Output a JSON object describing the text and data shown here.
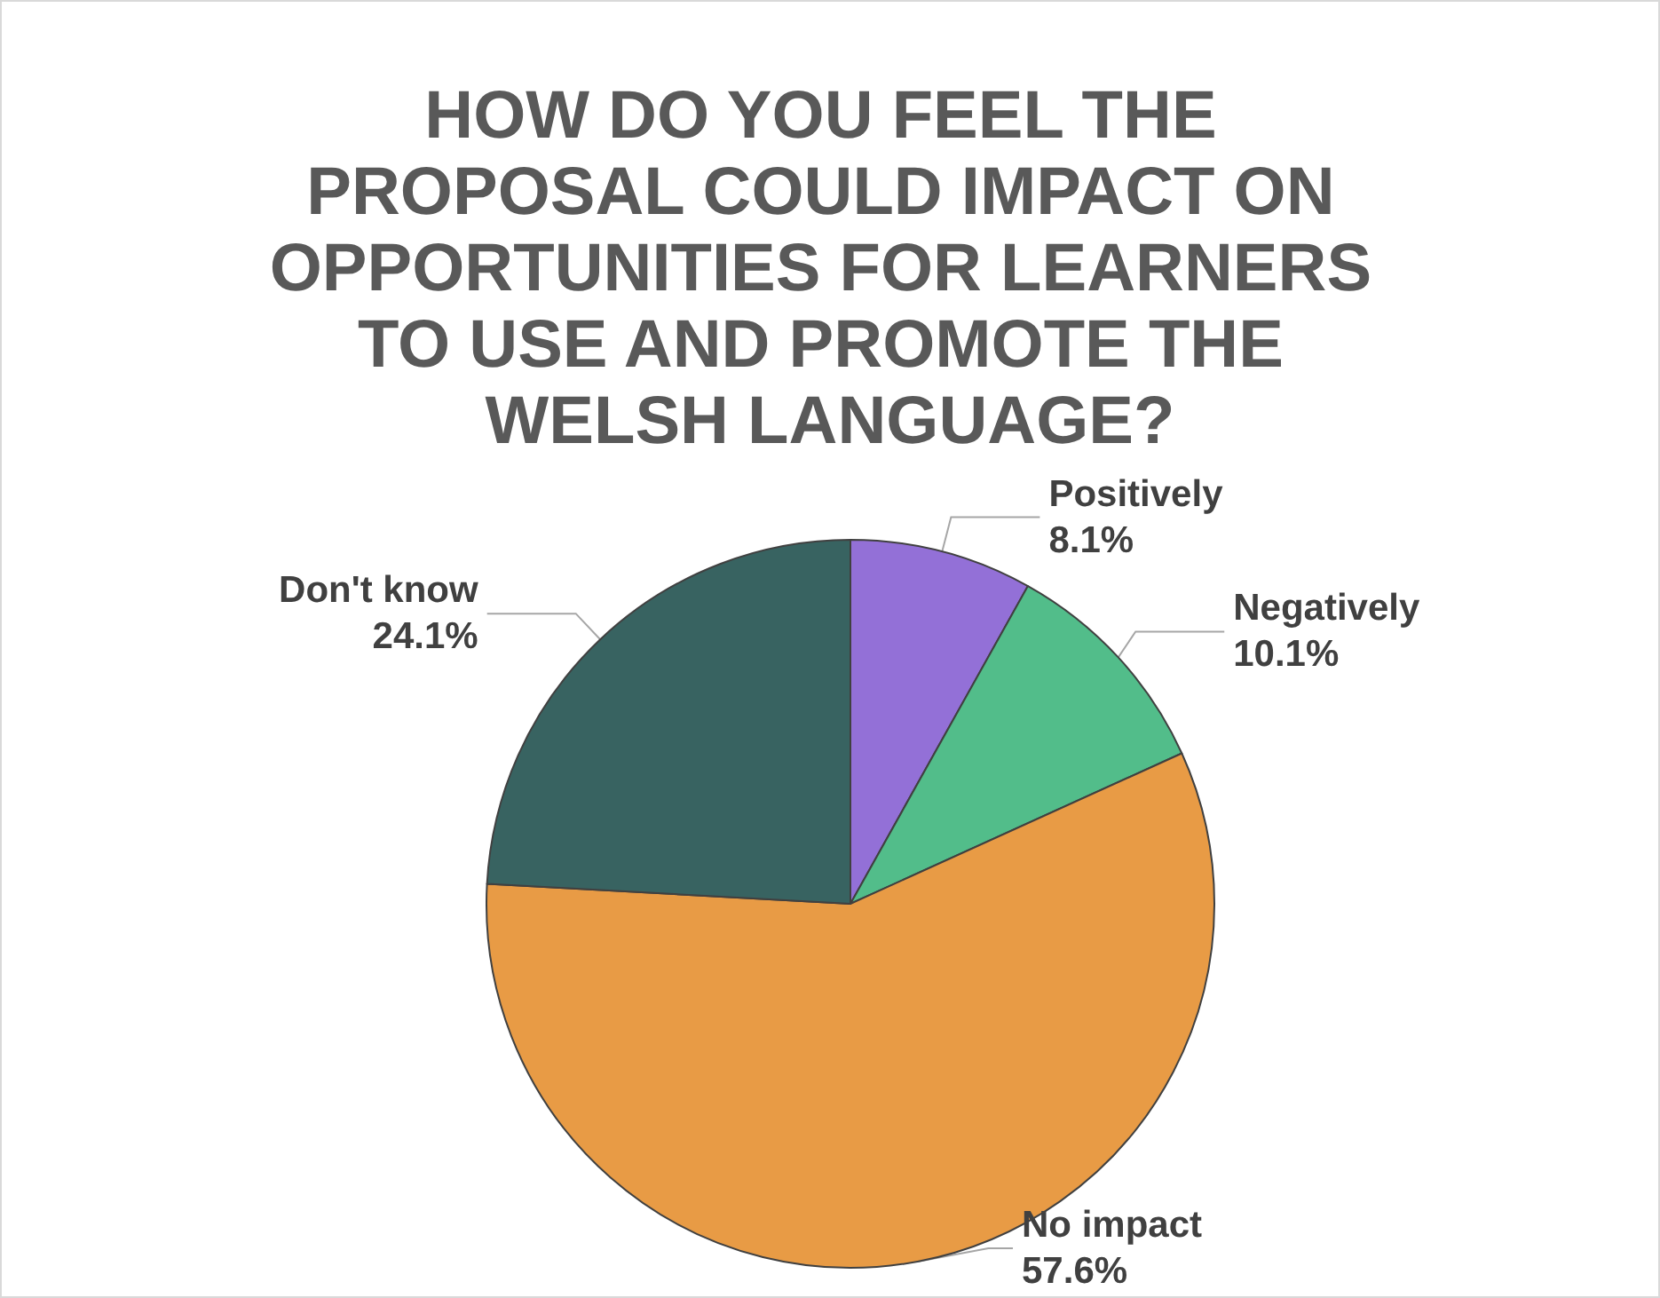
{
  "chart_data": {
    "type": "pie",
    "title": "HOW DO YOU FEEL THE PROPOSAL COULD IMPACT ON OPPORTUNITIES FOR LEARNERS TO USE AND PROMOTE THE WELSH LANGUAGE?",
    "categories": [
      "Positively",
      "Negatively",
      "No impact",
      "Don't know"
    ],
    "values": [
      8.1,
      10.1,
      57.6,
      24.1
    ],
    "value_labels": [
      "8.1%",
      "10.1%",
      "57.6%",
      "24.1%"
    ],
    "colors": [
      "#9370d7",
      "#52bd8a",
      "#e89b45",
      "#386361"
    ],
    "legend": false
  }
}
